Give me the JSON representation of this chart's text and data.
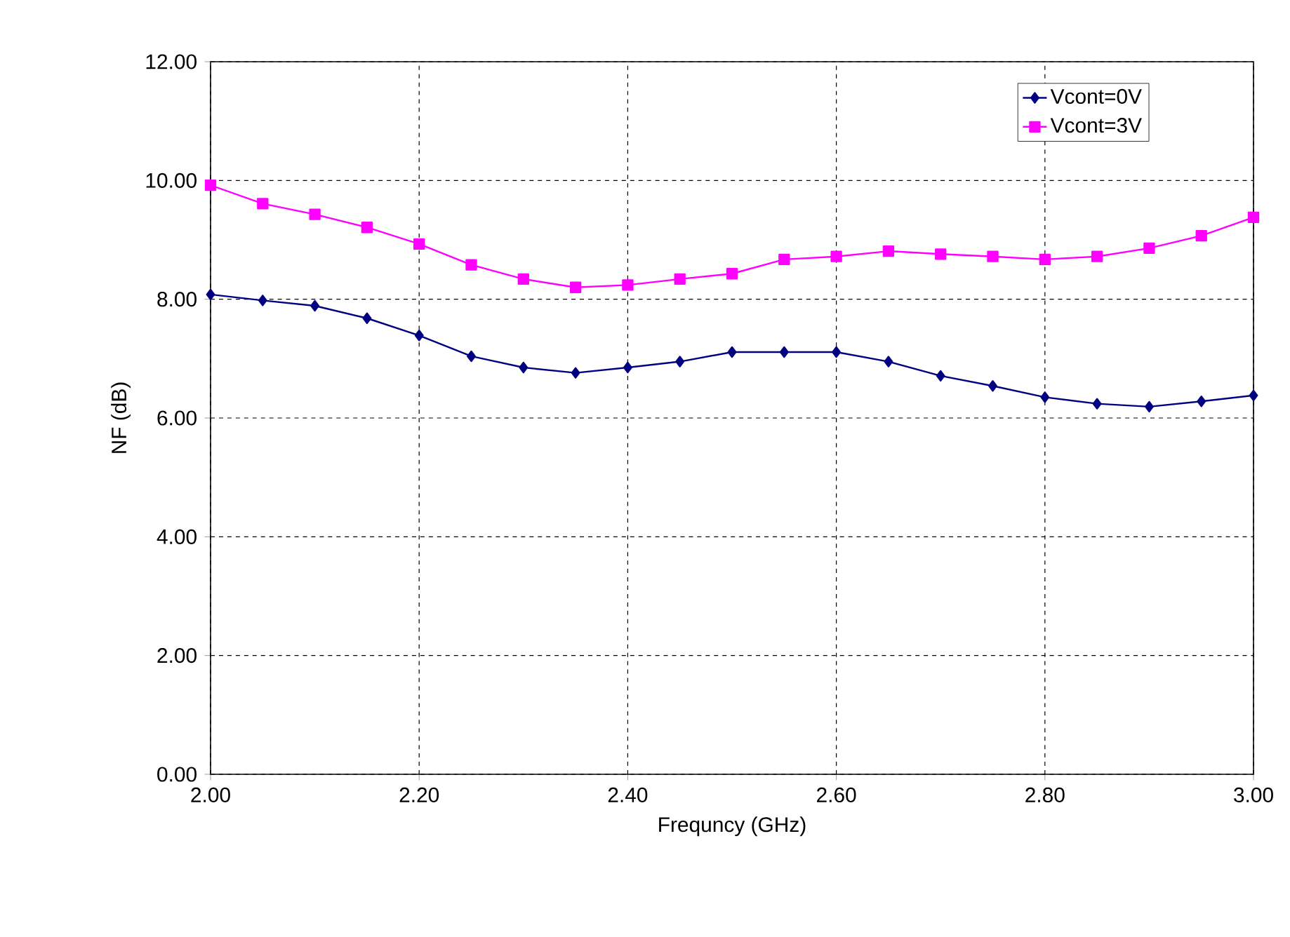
{
  "chart_data": {
    "type": "line",
    "xlabel": "Frequncy (GHz)",
    "ylabel": "NF (dB)",
    "x": [
      2.0,
      2.05,
      2.1,
      2.15,
      2.2,
      2.25,
      2.3,
      2.35,
      2.4,
      2.45,
      2.5,
      2.55,
      2.6,
      2.65,
      2.7,
      2.75,
      2.8,
      2.85,
      2.9,
      2.95,
      3.0
    ],
    "series": [
      {
        "name": "Vcont=0V",
        "color": "#000080",
        "marker": "diamond",
        "values": [
          8.08,
          7.98,
          7.89,
          7.68,
          7.39,
          7.04,
          6.85,
          6.76,
          6.85,
          6.95,
          7.11,
          7.11,
          7.11,
          6.95,
          6.71,
          6.54,
          6.35,
          6.24,
          6.19,
          6.28,
          6.38
        ]
      },
      {
        "name": "Vcont=3V",
        "color": "#ff00ff",
        "marker": "square",
        "values": [
          9.92,
          9.61,
          9.43,
          9.21,
          8.93,
          8.58,
          8.34,
          8.2,
          8.24,
          8.34,
          8.43,
          8.67,
          8.72,
          8.81,
          8.76,
          8.72,
          8.67,
          8.72,
          8.86,
          9.07,
          9.38
        ]
      }
    ],
    "xlim": [
      2.0,
      3.0
    ],
    "ylim": [
      0,
      12
    ],
    "xticks": [
      {
        "value": 2.0,
        "label": "2.00"
      },
      {
        "value": 2.2,
        "label": "2.20"
      },
      {
        "value": 2.4,
        "label": "2.40"
      },
      {
        "value": 2.6,
        "label": "2.60"
      },
      {
        "value": 2.8,
        "label": "2.80"
      },
      {
        "value": 3.0,
        "label": "3.00"
      }
    ],
    "yticks": [
      {
        "value": 0,
        "label": "0.00"
      },
      {
        "value": 2,
        "label": "2.00"
      },
      {
        "value": 4,
        "label": "4.00"
      },
      {
        "value": 6,
        "label": "6.00"
      },
      {
        "value": 8,
        "label": "8.00"
      },
      {
        "value": 10,
        "label": "10.00"
      },
      {
        "value": 12,
        "label": "12.00"
      }
    ],
    "grid": true,
    "legend": "top right",
    "line_style": "solid"
  }
}
